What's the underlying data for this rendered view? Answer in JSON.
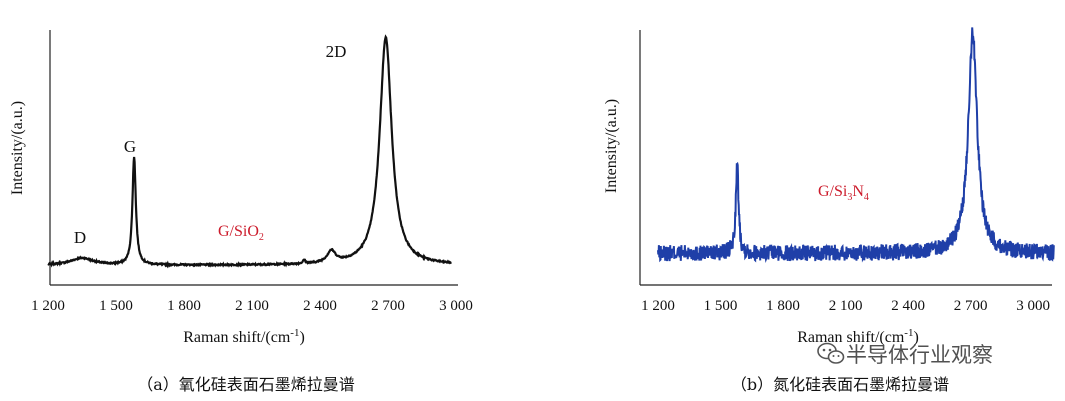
{
  "chart_data": [
    {
      "type": "line",
      "panel": "a",
      "xlabel": "Raman shift/(cm⁻¹)",
      "ylabel": "Intensity/(a.u.)",
      "xticks": [
        "1 200",
        "1 500",
        "1 800",
        "2 100",
        "2 400",
        "2 700",
        "3 000"
      ],
      "xtick_values": [
        1200,
        1500,
        1800,
        2100,
        2400,
        2700,
        3000
      ],
      "xlim": [
        1200,
        3000
      ],
      "ylim": [
        0,
        1
      ],
      "color": "#111111",
      "annotations": [
        {
          "text": "D",
          "x": 1330,
          "y": 0.12
        },
        {
          "text": "G",
          "x": 1560,
          "y": 0.52
        },
        {
          "text": "2D",
          "x": 2690,
          "y": 0.95
        }
      ],
      "substrate_label": {
        "main": "G/SiO",
        "subscript": "2"
      },
      "peaks": [
        {
          "name": "D",
          "x": 1350,
          "height": 0.03,
          "width": 60
        },
        {
          "name": "G",
          "x": 1580,
          "height": 0.46,
          "width": 9
        },
        {
          "name": "minor",
          "x": 2330,
          "height": 0.015,
          "width": 6
        },
        {
          "name": "D'",
          "x": 2450,
          "height": 0.05,
          "width": 22
        },
        {
          "name": "2D",
          "x": 2690,
          "height": 0.97,
          "width": 32
        }
      ],
      "baseline": 0.02,
      "noise": 0.003,
      "caption": "（a）氧化硅表面石墨烯拉曼谱"
    },
    {
      "type": "line",
      "panel": "b",
      "xlabel": "Raman shift/(cm⁻¹)",
      "ylabel": "Intensity/(a.u.)",
      "xticks": [
        "1 200",
        "1 500",
        "1 800",
        "2 100",
        "2 400",
        "2 700",
        "3 000"
      ],
      "xtick_values": [
        1200,
        1500,
        1800,
        2100,
        2400,
        2700,
        3000
      ],
      "xlim": [
        1200,
        3100
      ],
      "ylim": [
        0,
        1
      ],
      "color": "#1f3fa8",
      "substrate_label": {
        "main": "G/Si",
        "sub1": "3",
        "mid": "N",
        "sub2": "4"
      },
      "peaks": [
        {
          "name": "G",
          "x": 1580,
          "height": 0.38,
          "width": 8
        },
        {
          "name": "2D",
          "x": 2710,
          "height": 0.94,
          "width": 26
        }
      ],
      "baseline": 0.08,
      "noise": 0.035,
      "caption": "（b）氮化硅表面石墨烯拉曼谱"
    }
  ],
  "watermark": {
    "icon": "wechat-icon",
    "text": "半导体行业观察"
  }
}
